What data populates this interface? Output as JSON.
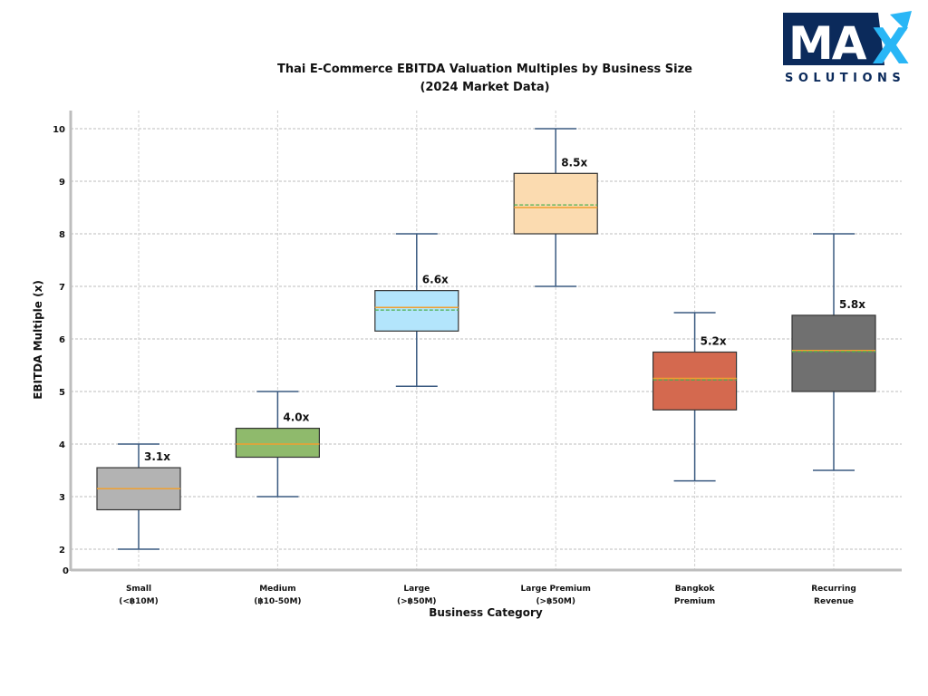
{
  "logo": {
    "main": "MA",
    "accent": "X",
    "sub": "SOLUTIONS",
    "colors": {
      "navy": "#0b2a5b",
      "accent": "#29b6f6"
    }
  },
  "chart_data": {
    "type": "box",
    "title_line1": "Thai E-Commerce EBITDA Valuation Multiples by Business Size",
    "title_line2": "(2024 Market Data)",
    "xlabel": "Business Category",
    "ylabel": "EBITDA Multiple (x)",
    "ylim": [
      2,
      10
    ],
    "yticks": [
      2,
      3,
      4,
      5,
      6,
      7,
      8,
      9,
      10
    ],
    "ytick_labels": [
      "2",
      "3",
      "4",
      "5",
      "6",
      "7",
      "8",
      "9",
      "10"
    ],
    "axis_break_label": "0",
    "grid": true,
    "categories": [
      {
        "line1": "Small",
        "line2": "(<฿10M)"
      },
      {
        "line1": "Medium",
        "line2": "(฿10-50M)"
      },
      {
        "line1": "Large",
        "line2": "(>฿50M)"
      },
      {
        "line1": "Large Premium",
        "line2": "(>฿50M)"
      },
      {
        "line1": "Bangkok",
        "line2": "Premium"
      },
      {
        "line1": "Recurring",
        "line2": "Revenue"
      }
    ],
    "boxes": [
      {
        "whisker_low": 2.0,
        "q1": 2.75,
        "median": 3.15,
        "mean": 3.1,
        "q3": 3.55,
        "whisker_high": 4.0,
        "label": "3.1x",
        "color": "#b3b3b3"
      },
      {
        "whisker_low": 3.0,
        "q1": 3.75,
        "median": 4.0,
        "mean": 4.0,
        "q3": 4.3,
        "whisker_high": 5.0,
        "label": "4.0x",
        "color": "#8fba6c"
      },
      {
        "whisker_low": 5.1,
        "q1": 6.15,
        "median": 6.6,
        "mean": 6.55,
        "q3": 6.92,
        "whisker_high": 8.0,
        "label": "6.6x",
        "color": "#b3e5fc"
      },
      {
        "whisker_low": 7.0,
        "q1": 8.0,
        "median": 8.5,
        "mean": 8.55,
        "q3": 9.15,
        "whisker_high": 10.0,
        "label": "8.5x",
        "color": "#fbdbb0"
      },
      {
        "whisker_low": 3.3,
        "q1": 4.65,
        "median": 5.25,
        "mean": 5.22,
        "q3": 5.75,
        "whisker_high": 6.5,
        "label": "5.2x",
        "color": "#d4694f"
      },
      {
        "whisker_low": 3.5,
        "q1": 5.0,
        "median": 5.78,
        "mean": 5.76,
        "q3": 6.45,
        "whisker_high": 8.0,
        "label": "5.8x",
        "color": "#707070"
      }
    ],
    "median_color": "#f0a030",
    "mean_color": "#4caf50",
    "whisker_color": "#3a5a80"
  }
}
